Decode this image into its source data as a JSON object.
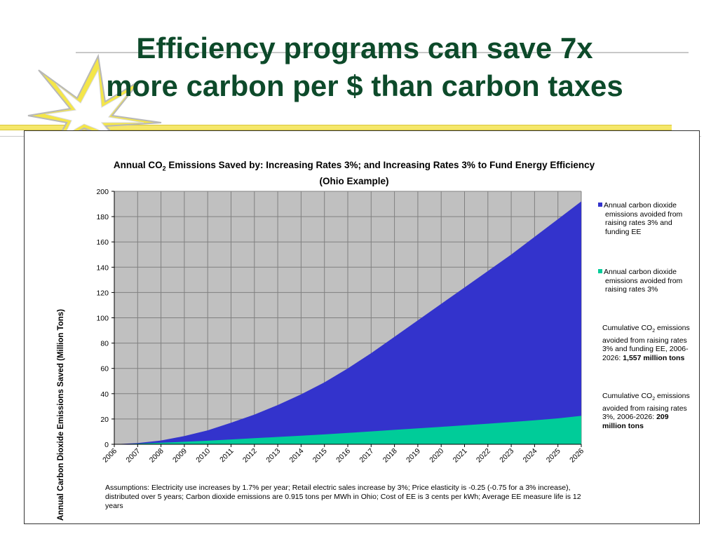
{
  "slide": {
    "title_line1": "Efficiency programs can save 7x",
    "title_line2": "more carbon per $ than carbon taxes"
  },
  "colors": {
    "title": "#0d4a2a",
    "plot_bg": "#c0c0c0",
    "grid": "#808080",
    "series_ee": "#3333cc",
    "series_rates": "#00cc99"
  },
  "chart_data": {
    "type": "area",
    "title_part1": "Annual CO",
    "title_sub": "2",
    "title_part2": " Emissions Saved by: Increasing Rates 3%; and Increasing Rates 3% to Fund Energy Efficiency (Ohio Example)",
    "xlabel": "",
    "ylabel": "Annual Carbon Dioxide Emissions Saved (Million Tons)",
    "ylim": [
      0,
      200
    ],
    "yticks": [
      0,
      20,
      40,
      60,
      80,
      100,
      120,
      140,
      160,
      180,
      200
    ],
    "grid": true,
    "stacked": false,
    "legend_position": "right",
    "x": [
      "2006",
      "2007",
      "2008",
      "2009",
      "2010",
      "2011",
      "2012",
      "2013",
      "2014",
      "2015",
      "2016",
      "2017",
      "2018",
      "2019",
      "2020",
      "2021",
      "2022",
      "2023",
      "2024",
      "2025",
      "2026"
    ],
    "series": [
      {
        "name": "Annual carbon dioxide emissions avoided from raising rates 3% and funding EE",
        "color": "#3333cc",
        "values": [
          0,
          1,
          3,
          6.5,
          11,
          17,
          23.5,
          31,
          39.5,
          49,
          60,
          72,
          85,
          98,
          111,
          124,
          137,
          150,
          164,
          178,
          192
        ]
      },
      {
        "name": "Annual carbon dioxide emissions avoided from raising rates 3%",
        "color": "#00cc99",
        "values": [
          0,
          0.5,
          1.3,
          2,
          2.8,
          3.8,
          4.8,
          5.8,
          6.8,
          7.8,
          9,
          10.2,
          11.4,
          12.6,
          13.8,
          15,
          16.3,
          17.6,
          19,
          20.5,
          22.5
        ]
      }
    ],
    "annotations": [
      {
        "label_part1": "Cumulative CO",
        "label_sub": "2",
        "label_part2": " emissions avoided from raising rates 3% and funding EE, 2006-2026: ",
        "value": "1,557 million tons"
      },
      {
        "label_part1": "Cumulative CO",
        "label_sub": "2",
        "label_part2": " emissions avoided from raising rates 3%, 2006-2026: ",
        "value": "209 million tons"
      }
    ],
    "assumptions": "Assumptions: Electricity use increases by 1.7% per year; Retail electric sales increase by 3%; Price elasticity is -0.25 (-0.75 for a 3% increase), distributed over 5 years; Carbon dioxide emissions are 0.915 tons per MWh in Ohio; Cost of EE is 3 cents per kWh; Average EE measure life is 12 years"
  }
}
